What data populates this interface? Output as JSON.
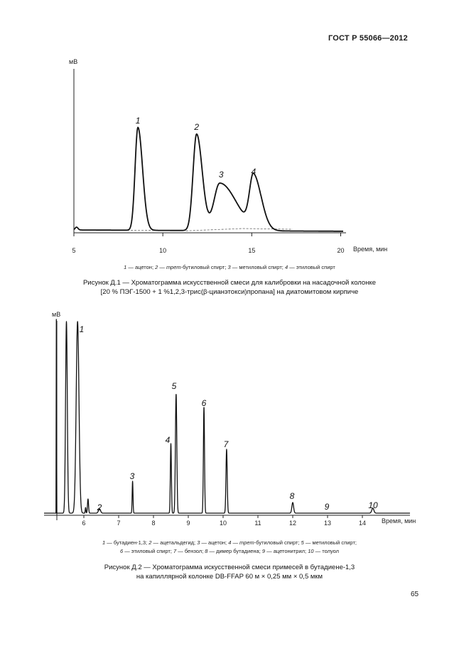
{
  "header": {
    "standard": "ГОСТ Р 55066—2012"
  },
  "page_number": "65",
  "chart_data": [
    {
      "type": "line",
      "ylabel": "мВ",
      "xlabel": "Время, мин",
      "x_ticks": [
        "5",
        "10",
        "15",
        "20"
      ],
      "xlim": [
        5,
        20
      ],
      "peaks": [
        {
          "label": "1",
          "x": 8.6,
          "height": 145
        },
        {
          "label": "2",
          "x": 11.9,
          "height": 136
        },
        {
          "label": "3",
          "x": 13.2,
          "height": 67
        },
        {
          "label": "4",
          "x": 15.1,
          "height": 73
        }
      ],
      "legend_parts": [
        {
          "n": "1",
          "t": " — ацетон; "
        },
        {
          "n": "2",
          "t": " — "
        },
        {
          "n": "",
          "t": "трет",
          "i": true
        },
        {
          "n": "",
          "t": "-бутиловый спирт; "
        },
        {
          "n": "3",
          "t": " — метиловый спирт; "
        },
        {
          "n": "4",
          "t": " — этиловый спирт"
        }
      ],
      "caption_line1": "Рисунок Д.1 — Хроматограмма искусственной смеси для калибровки на насадочной колонке",
      "caption_line2": "[20 % ПЭГ-1500 + 1 %1,2,3-трис(β-цианэтокси)пропана] на диатомитовом кирпиче"
    },
    {
      "type": "line",
      "ylabel": "мВ",
      "xlabel": "Время, мин",
      "x_ticks": [
        "6",
        "7",
        "8",
        "9",
        "10",
        "11",
        "12",
        "13",
        "14"
      ],
      "xlim": [
        5.2,
        14.7
      ],
      "peaks": [
        {
          "label": "1",
          "x": 5.8,
          "height": 250
        },
        {
          "label": "2",
          "x": 6.45,
          "height": 6
        },
        {
          "label": "3",
          "x": 7.4,
          "height": 45
        },
        {
          "label": "4",
          "x": 8.5,
          "height": 98
        },
        {
          "label": "5",
          "x": 8.65,
          "height": 168
        },
        {
          "label": "6",
          "x": 9.45,
          "height": 150
        },
        {
          "label": "7",
          "x": 10.1,
          "height": 90
        },
        {
          "label": "8",
          "x": 12.0,
          "height": 15
        },
        {
          "label": "9",
          "x": 12.95,
          "height": 0
        },
        {
          "label": "10",
          "x": 14.3,
          "height": 7
        }
      ],
      "legend_line1_parts": [
        {
          "n": "1",
          "t": " — бутадиен-1,3; "
        },
        {
          "n": "2",
          "t": " — ацетальдегид; "
        },
        {
          "n": "3",
          "t": " — ацетон; "
        },
        {
          "n": "4",
          "t": " — "
        },
        {
          "n": "",
          "t": "трет",
          "i": true
        },
        {
          "n": "",
          "t": "-бутиловый спирт; "
        },
        {
          "n": "5",
          "t": " — метиловый спирт;"
        }
      ],
      "legend_line2_parts": [
        {
          "n": "6",
          "t": " — этиловый спирт; "
        },
        {
          "n": "7",
          "t": " — бензол; "
        },
        {
          "n": "8",
          "t": " — димер бутадиена; "
        },
        {
          "n": "9",
          "t": " — ацетонитрил; "
        },
        {
          "n": "10",
          "t": " — толуол"
        }
      ],
      "caption_line1": "Рисунок Д.2 — Хроматограмма искусственной смеси примесей в бутадиене-1,3",
      "caption_line2": "на капиллярной колонке DB-FFAP 60 м × 0,25 мм × 0,5 мкм"
    }
  ]
}
